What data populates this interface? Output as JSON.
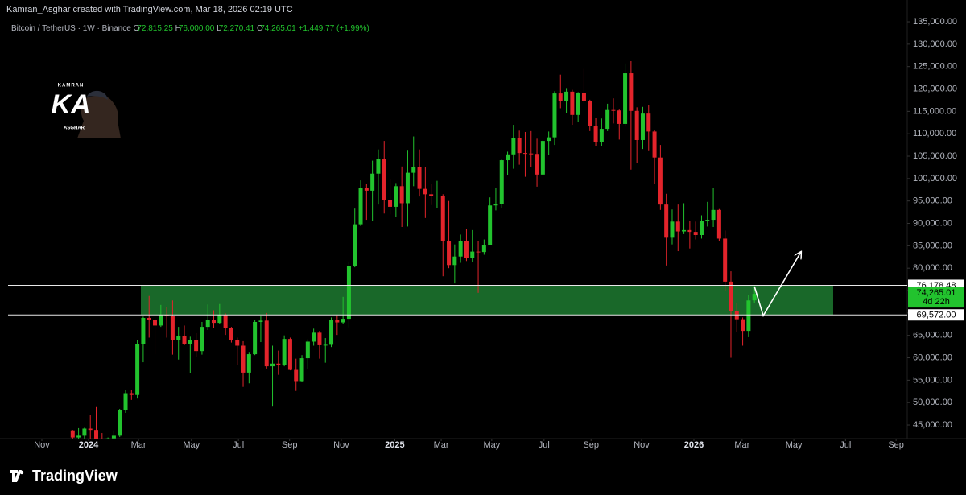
{
  "header": "Kamran_Asghar created with TradingView.com, Mar 18, 2026 02:19 UTC",
  "footer": {
    "brand": "TradingView"
  },
  "watermark": {
    "top": "KAMRAN",
    "main": "KA",
    "bottom": "ASGHAR"
  },
  "chart_data": {
    "type": "candlestick",
    "legend": {
      "symbol": "Bitcoin / TetherUS · 1W · Binance",
      "ohlc": [
        {
          "key": "O",
          "value": "72,815.25"
        },
        {
          "key": "H",
          "value": "76,000.00"
        },
        {
          "key": "L",
          "value": "72,270.41"
        },
        {
          "key": "C",
          "value": "74,265.01"
        }
      ],
      "change": "+1,449.77 (+1.99%)"
    },
    "up_color": "#22c32e",
    "down_color": "#e3242b",
    "xlim": [
      0,
      153
    ],
    "xticks": [
      {
        "value": 5.75,
        "label": "Nov"
      },
      {
        "value": 13.7,
        "label": "2024"
      },
      {
        "value": 22.2,
        "label": "Mar"
      },
      {
        "value": 31.2,
        "label": "May"
      },
      {
        "value": 39.2,
        "label": "Jul"
      },
      {
        "value": 47.9,
        "label": "Sep"
      },
      {
        "value": 56.7,
        "label": "Nov"
      },
      {
        "value": 65.8,
        "label": "2025"
      },
      {
        "value": 73.7,
        "label": "Mar"
      },
      {
        "value": 82.3,
        "label": "May"
      },
      {
        "value": 91.2,
        "label": "Jul"
      },
      {
        "value": 99.2,
        "label": "Sep"
      },
      {
        "value": 107.8,
        "label": "Nov"
      },
      {
        "value": 116.7,
        "label": "2026"
      },
      {
        "value": 124.9,
        "label": "Mar"
      },
      {
        "value": 133.7,
        "label": "May"
      },
      {
        "value": 142.5,
        "label": "Jul"
      },
      {
        "value": 151.1,
        "label": "Sep"
      }
    ],
    "ylim": [
      41950,
      137160
    ],
    "yticks": [
      {
        "value": 45000,
        "label": "45,000.00"
      },
      {
        "value": 50000,
        "label": "50,000.00"
      },
      {
        "value": 55000,
        "label": "55,000.00"
      },
      {
        "value": 60000,
        "label": "60,000.00"
      },
      {
        "value": 65000,
        "label": "65,000.00"
      },
      {
        "value": 70000,
        "label": "70,000.00"
      },
      {
        "value": 75000,
        "label": "75,000.00"
      },
      {
        "value": 80000,
        "label": "80,000.00"
      },
      {
        "value": 85000,
        "label": "85,000.00"
      },
      {
        "value": 90000,
        "label": "90,000.00"
      },
      {
        "value": 95000,
        "label": "95,000.00"
      },
      {
        "value": 100000,
        "label": "100,000.00"
      },
      {
        "value": 105000,
        "label": "105,000.00"
      },
      {
        "value": 110000,
        "label": "110,000.00"
      },
      {
        "value": 115000,
        "label": "115,000.00"
      },
      {
        "value": 120000,
        "label": "120,000.00"
      },
      {
        "value": 125000,
        "label": "125,000.00"
      },
      {
        "value": 130000,
        "label": "130,000.00"
      },
      {
        "value": 135000,
        "label": "135,000.00"
      }
    ],
    "levels": [
      {
        "value": 76178.48,
        "label": "76,178.48"
      },
      {
        "value": 69572,
        "label": "69,572.00"
      }
    ],
    "last": {
      "value": 74265.01,
      "label": "74,265.01",
      "countdown": "4d 22h",
      "color": "#22c32e"
    },
    "zone": {
      "x": [
        22.6,
        140.4
      ],
      "color": "#1d7a30"
    },
    "projection": {
      "x": [
        127,
        128.5,
        134.9
      ],
      "y": [
        75900,
        69400,
        83600
      ],
      "color": "#ffffff"
    },
    "x": [
      11,
      12,
      13,
      14,
      15,
      16,
      17,
      18,
      19,
      20,
      21,
      22,
      23,
      24,
      25,
      26,
      27,
      28,
      29,
      30,
      31,
      32,
      33,
      34,
      35,
      36,
      37,
      38,
      39,
      40,
      41,
      42,
      43,
      44,
      45,
      46,
      47,
      48,
      49,
      50,
      51,
      52,
      53,
      54,
      55,
      56,
      57,
      58,
      59,
      60,
      61,
      62,
      63,
      64,
      65,
      66,
      67,
      68,
      69,
      70,
      71,
      72,
      73,
      74,
      75,
      76,
      77,
      78,
      79,
      80,
      81,
      82,
      83,
      84,
      85,
      86,
      87,
      88,
      89,
      90,
      91,
      92,
      93,
      94,
      95,
      96,
      97,
      98,
      99,
      100,
      101,
      102,
      103,
      104,
      105,
      106,
      107,
      108,
      109,
      110,
      111,
      112,
      113,
      114,
      115,
      116,
      117,
      118,
      119,
      120,
      121,
      122,
      123,
      124,
      125,
      126,
      127
    ],
    "open": [
      43800,
      42200,
      42600,
      44200,
      43900,
      41700,
      41600,
      42000,
      42600,
      48300,
      52100,
      51700,
      63100,
      68900,
      68400,
      67200,
      69600,
      69400,
      63900,
      64900,
      63100,
      63900,
      61500,
      66900,
      68500,
      67800,
      69600,
      66700,
      64000,
      62700,
      56700,
      60800,
      68000,
      68300,
      58100,
      58700,
      58400,
      64200,
      57300,
      54800,
      59900,
      63600,
      65600,
      62800,
      62900,
      68400,
      67900,
      68700,
      80400,
      89800,
      97900,
      97300,
      101100,
      104400,
      95200,
      93700,
      98300,
      94500,
      101300,
      102600,
      97700,
      96500,
      96100,
      96200,
      86000,
      80700,
      82600,
      86000,
      82300,
      83700,
      83600,
      85200,
      94000,
      94300,
      104100,
      105400,
      109000,
      105700,
      105600,
      105500,
      100900,
      108400,
      109200,
      119000,
      117300,
      119400,
      114200,
      119200,
      117400,
      111700,
      108200,
      111100,
      115300,
      115200,
      112200,
      123500,
      115100,
      108600,
      114500,
      110500,
      104700,
      94200,
      86800,
      90400,
      88200,
      88500,
      88100,
      87400,
      90500,
      90800,
      93000,
      86600,
      77000,
      70500,
      68600,
      66000,
      72815.25
    ],
    "high": [
      43900,
      44300,
      44400,
      47200,
      49000,
      43200,
      42200,
      43800,
      48600,
      52800,
      52900,
      64000,
      69200,
      73800,
      68900,
      71800,
      71300,
      72800,
      66900,
      67200,
      64700,
      65500,
      68000,
      71900,
      70600,
      72000,
      69900,
      66900,
      64500,
      63700,
      61300,
      68400,
      69400,
      70000,
      62700,
      61600,
      65000,
      64500,
      59800,
      60600,
      64100,
      66500,
      66000,
      64400,
      69000,
      69500,
      73600,
      81500,
      93300,
      99600,
      98900,
      104000,
      106500,
      108400,
      99900,
      99000,
      102700,
      106400,
      109400,
      106500,
      102500,
      98800,
      99500,
      96500,
      95000,
      85300,
      87500,
      88800,
      88500,
      86100,
      86400,
      95800,
      97900,
      104300,
      106000,
      112000,
      110700,
      110400,
      110600,
      108900,
      108500,
      110500,
      119500,
      123200,
      120200,
      119800,
      119300,
      124500,
      117600,
      113500,
      113400,
      116700,
      117900,
      115400,
      125700,
      126200,
      115900,
      116000,
      116400,
      110800,
      107500,
      96600,
      93100,
      94200,
      94500,
      90600,
      90400,
      91800,
      94800,
      97900,
      93200,
      88400,
      79300,
      72200,
      69000,
      74000,
      76000
    ],
    "low": [
      40200,
      40600,
      41500,
      40800,
      41500,
      40300,
      38500,
      41900,
      42300,
      47700,
      50600,
      50900,
      59000,
      64500,
      60800,
      66900,
      64500,
      60700,
      59600,
      62800,
      56500,
      60200,
      60700,
      66200,
      66700,
      67500,
      65100,
      63400,
      58400,
      53500,
      54300,
      60600,
      63500,
      57600,
      49100,
      56200,
      58100,
      57200,
      52600,
      54600,
      57500,
      62700,
      59800,
      58900,
      62400,
      65100,
      67500,
      66800,
      80200,
      89400,
      90800,
      90500,
      94200,
      92200,
      92000,
      91500,
      89200,
      89300,
      98300,
      96000,
      91200,
      94100,
      93400,
      78200,
      80000,
      76600,
      81200,
      81600,
      81300,
      74500,
      83000,
      85100,
      92900,
      93400,
      100700,
      102200,
      103100,
      100400,
      102600,
      98200,
      100800,
      105200,
      107500,
      115700,
      114700,
      112000,
      112600,
      116800,
      110600,
      107300,
      107200,
      110600,
      112300,
      108700,
      111600,
      102000,
      103500,
      106600,
      106300,
      98900,
      93000,
      80600,
      85300,
      83800,
      87600,
      84400,
      86400,
      86600,
      89300,
      89200,
      86100,
      75000,
      60000,
      65700,
      62700,
      64600,
      72270.41
    ],
    "close": [
      42200,
      42600,
      44200,
      43900,
      41700,
      41600,
      42000,
      42600,
      48300,
      52100,
      51700,
      63100,
      68900,
      68400,
      67200,
      69600,
      69400,
      63900,
      64900,
      63100,
      63900,
      61500,
      66900,
      68500,
      67800,
      69600,
      66700,
      64000,
      62700,
      56700,
      60800,
      68000,
      68300,
      58100,
      58700,
      58400,
      64200,
      57300,
      54800,
      59900,
      63600,
      65600,
      62800,
      62900,
      68400,
      67900,
      68700,
      80400,
      89800,
      97900,
      97300,
      101100,
      104400,
      95200,
      93700,
      98300,
      94500,
      101300,
      102600,
      97700,
      96500,
      96100,
      96200,
      86000,
      80700,
      82600,
      86000,
      82300,
      83700,
      83600,
      85200,
      94000,
      94300,
      104100,
      105400,
      109000,
      105700,
      105600,
      105500,
      100900,
      108400,
      109200,
      119000,
      117300,
      119400,
      114200,
      119200,
      117400,
      111700,
      108200,
      111100,
      115300,
      115200,
      112200,
      123500,
      115100,
      108600,
      114500,
      110500,
      104700,
      94200,
      86800,
      90400,
      88200,
      88500,
      88100,
      87400,
      90500,
      90800,
      93000,
      86600,
      77000,
      70500,
      68600,
      66000,
      72800,
      74265.01
    ]
  }
}
